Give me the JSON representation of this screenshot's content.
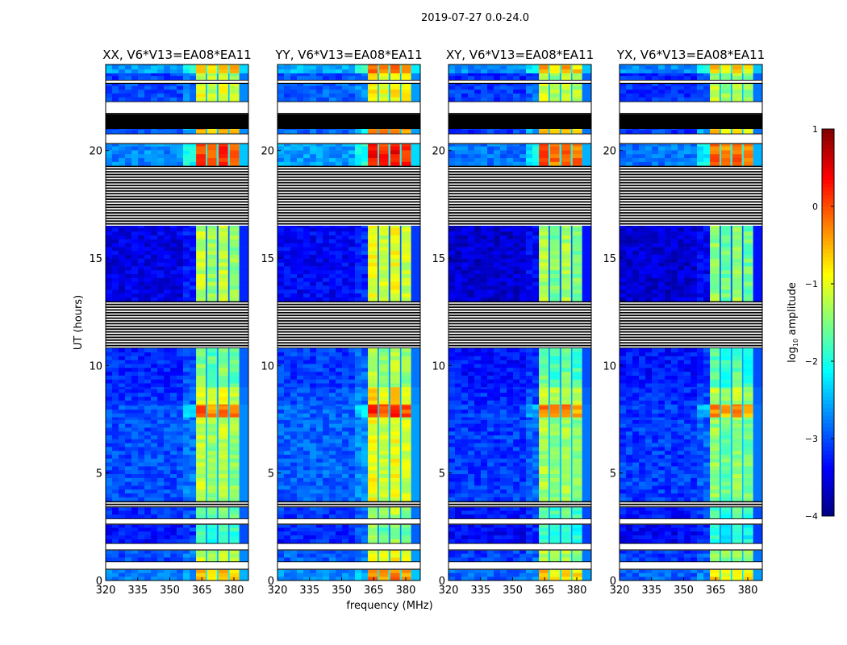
{
  "chart_data": {
    "type": "heatmap",
    "title": "2019-07-27 0.0-24.0",
    "xlabel": "frequency (MHz)",
    "ylabel": "UT (hours)",
    "xlim": [
      320,
      386.8
    ],
    "ylim": [
      0,
      24
    ],
    "xticks": [
      320,
      335,
      350,
      365,
      380
    ],
    "yticks": [
      0,
      5,
      10,
      15,
      20
    ],
    "panels": [
      {
        "title": "XX, V6*V13=EA08*EA11",
        "band_offset": 0.0,
        "bg_offset": 0.0
      },
      {
        "title": "YY, V6*V13=EA08*EA11",
        "band_offset": 0.25,
        "bg_offset": 0.1
      },
      {
        "title": "XY, V6*V13=EA08*EA11",
        "band_offset": -0.1,
        "bg_offset": -0.1
      },
      {
        "title": "YX, V6*V13=EA08*EA11",
        "band_offset": -0.2,
        "bg_offset": -0.1
      }
    ],
    "subbands_mhz": [
      [
        362.3,
        366.8
      ],
      [
        367.5,
        372.0
      ],
      [
        372.8,
        377.3
      ],
      [
        378.0,
        382.5
      ]
    ],
    "time_segments": [
      {
        "from": 0.0,
        "to": 0.5,
        "state": "data",
        "bg": -2.8,
        "band": -0.6
      },
      {
        "from": 0.5,
        "to": 0.9,
        "state": "flagged"
      },
      {
        "from": 0.9,
        "to": 1.4,
        "state": "data",
        "bg": -3.0,
        "band": -1.2
      },
      {
        "from": 1.4,
        "to": 1.75,
        "state": "flagged"
      },
      {
        "from": 1.75,
        "to": 2.6,
        "state": "data",
        "bg": -3.3,
        "band": -1.8
      },
      {
        "from": 2.6,
        "to": 2.9,
        "state": "flagged"
      },
      {
        "from": 2.9,
        "to": 3.4,
        "state": "data",
        "bg": -3.2,
        "band": -1.6
      },
      {
        "from": 3.4,
        "to": 3.7,
        "state": "striped"
      },
      {
        "from": 3.7,
        "to": 7.6,
        "state": "data",
        "bg": -3.0,
        "band": -1.3
      },
      {
        "from": 7.6,
        "to": 8.2,
        "state": "data",
        "bg": -3.0,
        "band": -0.2
      },
      {
        "from": 8.2,
        "to": 9.0,
        "state": "data",
        "bg": -3.1,
        "band": -1.1
      },
      {
        "from": 9.0,
        "to": 10.8,
        "state": "data",
        "bg": -3.2,
        "band": -1.6
      },
      {
        "from": 10.8,
        "to": 13.0,
        "state": "striped"
      },
      {
        "from": 13.0,
        "to": 16.5,
        "state": "data",
        "bg": -3.5,
        "band": -1.3
      },
      {
        "from": 16.5,
        "to": 19.3,
        "state": "striped"
      },
      {
        "from": 19.3,
        "to": 20.3,
        "state": "data",
        "bg": -2.7,
        "band": 0.0
      },
      {
        "from": 20.3,
        "to": 20.8,
        "state": "flagged"
      },
      {
        "from": 20.8,
        "to": 21.0,
        "state": "data",
        "bg": -3.0,
        "band": -0.5
      },
      {
        "from": 21.0,
        "to": 21.7,
        "state": "blank"
      },
      {
        "from": 21.7,
        "to": 22.3,
        "state": "flagged"
      },
      {
        "from": 22.3,
        "to": 23.1,
        "state": "data",
        "bg": -3.0,
        "band": -1.1
      },
      {
        "from": 23.1,
        "to": 23.3,
        "state": "flagged"
      },
      {
        "from": 23.3,
        "to": 23.6,
        "state": "data",
        "bg": -3.1,
        "band": -1.2
      },
      {
        "from": 23.6,
        "to": 24.0,
        "state": "data",
        "bg": -2.6,
        "band": -0.5
      }
    ],
    "colorbar": {
      "label_base": "log",
      "label_sub": "10",
      "label_rest": " amplitude",
      "range": [
        -4,
        1
      ],
      "ticks": [
        1,
        0,
        -1,
        -2,
        -3,
        -4
      ],
      "colormap": "jet"
    }
  }
}
